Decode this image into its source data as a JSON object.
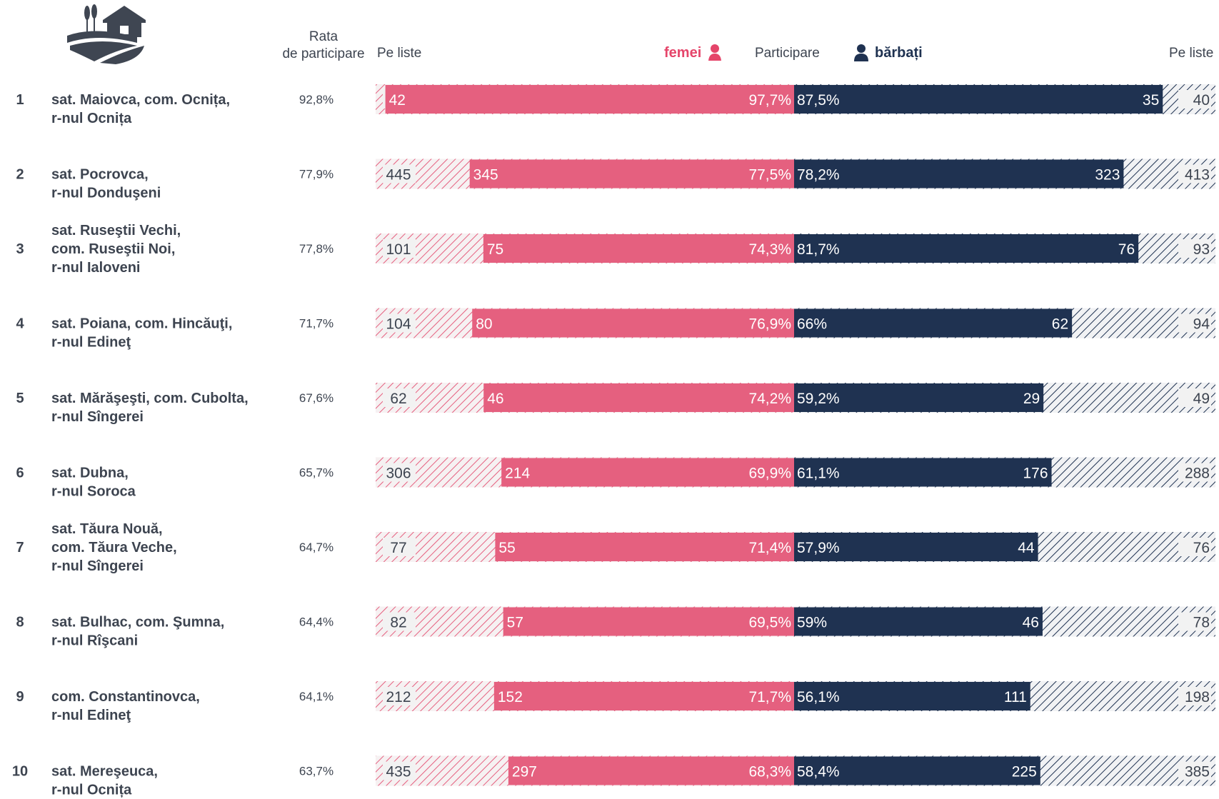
{
  "header": {
    "rate_line1": "Rata",
    "rate_line2": "de participare",
    "left_list": "Pe liste",
    "right_list": "Pe liste",
    "participation": "Participare",
    "female_label": "femei",
    "male_label": "bărbați"
  },
  "colors": {
    "female": "#e5607f",
    "female_hatch": "#e5607f",
    "male": "#1f3251",
    "male_hatch": "#1f3251",
    "list_bg": "#f2f2f2",
    "text": "#3d4450"
  },
  "icons": {
    "logo": "village-house-icon",
    "female": "female-person-icon",
    "male": "male-person-icon"
  },
  "chart_data": {
    "type": "bar",
    "subtype": "diverging-butterfly",
    "rows": [
      {
        "rank": "1",
        "name": [
          "sat. Maiovca, com. Ocnița,",
          "r-nul Ocnița"
        ],
        "rate": "92,8%",
        "f_list": 43,
        "f_voted": 42,
        "f_pct": "97,7%",
        "m_pct": "87,5%",
        "m_voted": 35,
        "m_list": 40
      },
      {
        "rank": "2",
        "name": [
          "sat. Pocrovca,",
          "r-nul Donduşeni"
        ],
        "rate": "77,9%",
        "f_list": 445,
        "f_voted": 345,
        "f_pct": "77,5%",
        "m_pct": "78,2%",
        "m_voted": 323,
        "m_list": 413
      },
      {
        "rank": "3",
        "name": [
          "sat. Ruseştii Vechi,",
          "com. Ruseştii Noi,",
          "r-nul Ialoveni"
        ],
        "rate": "77,8%",
        "f_list": 101,
        "f_voted": 75,
        "f_pct": "74,3%",
        "m_pct": "81,7%",
        "m_voted": 76,
        "m_list": 93
      },
      {
        "rank": "4",
        "name": [
          "sat. Poiana, com. Hincăuţi,",
          "r-nul Edineţ"
        ],
        "rate": "71,7%",
        "f_list": 104,
        "f_voted": 80,
        "f_pct": "76,9%",
        "m_pct": "66%",
        "m_voted": 62,
        "m_list": 94
      },
      {
        "rank": "5",
        "name": [
          "sat. Mărăşeşti, com. Cubolta,",
          "r-nul Sîngerei"
        ],
        "rate": "67,6%",
        "f_list": 62,
        "f_voted": 46,
        "f_pct": "74,2%",
        "m_pct": "59,2%",
        "m_voted": 29,
        "m_list": 49
      },
      {
        "rank": "6",
        "name": [
          "sat. Dubna,",
          "r-nul Soroca"
        ],
        "rate": "65,7%",
        "f_list": 306,
        "f_voted": 214,
        "f_pct": "69,9%",
        "m_pct": "61,1%",
        "m_voted": 176,
        "m_list": 288
      },
      {
        "rank": "7",
        "name": [
          "sat. Tăura Nouă,",
          "com. Tăura Veche,",
          "r-nul Sîngerei"
        ],
        "rate": "64,7%",
        "f_list": 77,
        "f_voted": 55,
        "f_pct": "71,4%",
        "m_pct": "57,9%",
        "m_voted": 44,
        "m_list": 76
      },
      {
        "rank": "8",
        "name": [
          "sat. Bulhac, com. Şumna,",
          "r-nul Rîşcani"
        ],
        "rate": "64,4%",
        "f_list": 82,
        "f_voted": 57,
        "f_pct": "69,5%",
        "m_pct": "59%",
        "m_voted": 46,
        "m_list": 78
      },
      {
        "rank": "9",
        "name": [
          "com. Constantinovca,",
          "r-nul Edineţ"
        ],
        "rate": "64,1%",
        "f_list": 212,
        "f_voted": 152,
        "f_pct": "71,7%",
        "m_pct": "56,1%",
        "m_voted": 111,
        "m_list": 198
      },
      {
        "rank": "10",
        "name": [
          "sat. Mereşeuca,",
          "r-nul Ocnița"
        ],
        "rate": "63,7%",
        "f_list": 435,
        "f_voted": 297,
        "f_pct": "68,3%",
        "m_pct": "58,4%",
        "m_voted": 225,
        "m_list": 385
      }
    ]
  }
}
